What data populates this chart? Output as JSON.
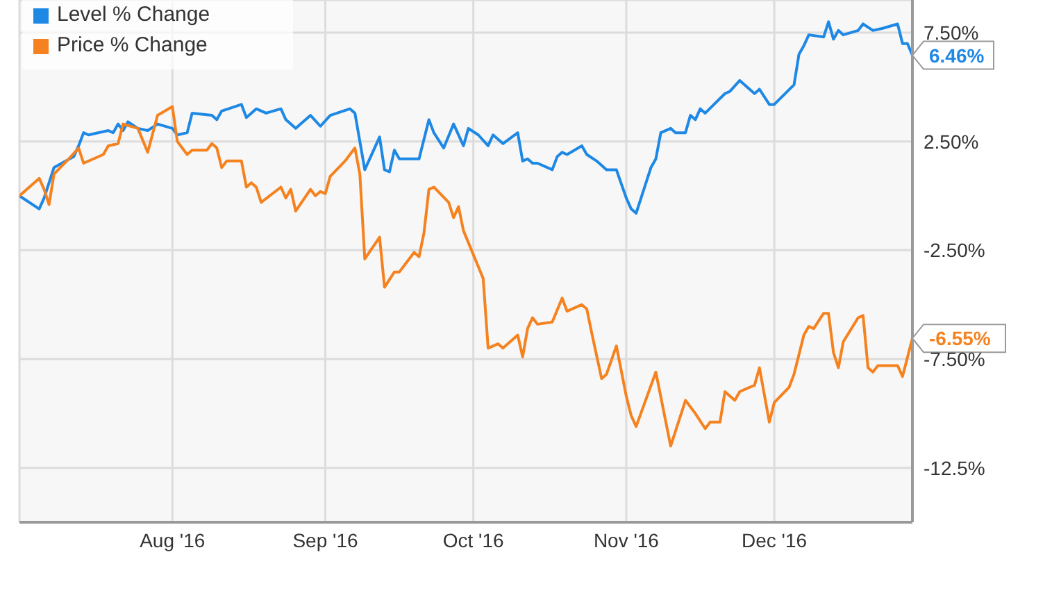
{
  "chart_data": {
    "type": "line",
    "series": [
      {
        "name": "Level % Change",
        "color": "#1e88e5",
        "x": [
          "2016-07-01",
          "2016-07-05",
          "2016-07-06",
          "2016-07-08",
          "2016-07-12",
          "2016-07-13",
          "2016-07-14",
          "2016-07-15",
          "2016-07-19",
          "2016-07-20",
          "2016-07-21",
          "2016-07-22",
          "2016-07-23",
          "2016-07-25",
          "2016-07-27",
          "2016-07-29",
          "2016-08-01",
          "2016-08-02",
          "2016-08-04",
          "2016-08-05",
          "2016-08-09",
          "2016-08-10",
          "2016-08-11",
          "2016-08-15",
          "2016-08-16",
          "2016-08-18",
          "2016-08-20",
          "2016-08-23",
          "2016-08-24",
          "2016-08-26",
          "2016-08-29",
          "2016-08-31",
          "2016-09-02",
          "2016-09-06",
          "2016-09-07",
          "2016-09-09",
          "2016-09-12",
          "2016-09-13",
          "2016-09-14",
          "2016-09-15",
          "2016-09-16",
          "2016-09-20",
          "2016-09-22",
          "2016-09-23",
          "2016-09-25",
          "2016-09-27",
          "2016-09-29",
          "2016-09-30",
          "2016-10-02",
          "2016-10-04",
          "2016-10-05",
          "2016-10-07",
          "2016-10-10",
          "2016-10-11",
          "2016-10-12",
          "2016-10-13",
          "2016-10-14",
          "2016-10-17",
          "2016-10-18",
          "2016-10-19",
          "2016-10-20",
          "2016-10-23",
          "2016-10-24",
          "2016-10-26",
          "2016-10-28",
          "2016-10-30",
          "2016-11-01",
          "2016-11-02",
          "2016-11-03",
          "2016-11-06",
          "2016-11-07",
          "2016-11-08",
          "2016-11-10",
          "2016-11-11",
          "2016-11-13",
          "2016-11-14",
          "2016-11-15",
          "2016-11-16",
          "2016-11-17",
          "2016-11-21",
          "2016-11-22",
          "2016-11-24",
          "2016-11-27",
          "2016-11-28",
          "2016-11-30",
          "2016-12-01",
          "2016-12-05",
          "2016-12-06",
          "2016-12-07",
          "2016-12-08",
          "2016-12-11",
          "2016-12-12",
          "2016-12-13",
          "2016-12-14",
          "2016-12-15",
          "2016-12-18",
          "2016-12-19",
          "2016-12-21",
          "2016-12-23",
          "2016-12-26",
          "2016-12-27",
          "2016-12-28",
          "2016-12-29"
        ],
        "values": [
          0,
          -0.6,
          -0.1,
          1.3,
          1.8,
          2.3,
          2.9,
          2.8,
          3.0,
          2.9,
          3.3,
          3.0,
          3.4,
          3.1,
          3.0,
          3.3,
          3.1,
          2.8,
          2.9,
          3.8,
          3.7,
          3.5,
          3.9,
          4.2,
          3.6,
          4.0,
          3.8,
          4.0,
          3.5,
          3.1,
          3.7,
          3.2,
          3.7,
          4.0,
          3.8,
          1.2,
          2.7,
          1.2,
          1.1,
          2.1,
          1.7,
          1.7,
          3.5,
          2.9,
          2.2,
          3.3,
          2.3,
          3.1,
          2.8,
          2.3,
          2.8,
          2.4,
          2.9,
          1.6,
          1.7,
          1.5,
          1.5,
          1.2,
          1.8,
          2.0,
          1.9,
          2.3,
          1.9,
          1.6,
          1.2,
          1.2,
          -0.1,
          -0.6,
          -0.8,
          1.3,
          1.7,
          2.9,
          3.1,
          2.9,
          2.9,
          3.7,
          3.5,
          4.0,
          3.8,
          4.7,
          4.8,
          5.3,
          4.7,
          4.9,
          4.2,
          4.2,
          5.1,
          6.5,
          6.9,
          7.4,
          7.3,
          8.0,
          7.2,
          7.6,
          7.4,
          7.6,
          7.9,
          7.6,
          7.7,
          7.9,
          7.0,
          7.0,
          6.46
        ]
      },
      {
        "name": "Price % Change",
        "color": "#f5821f",
        "x": [
          "2016-07-01",
          "2016-07-05",
          "2016-07-06",
          "2016-07-07",
          "2016-07-08",
          "2016-07-11",
          "2016-07-13",
          "2016-07-14",
          "2016-07-18",
          "2016-07-19",
          "2016-07-21",
          "2016-07-22",
          "2016-07-25",
          "2016-07-27",
          "2016-07-29",
          "2016-08-01",
          "2016-08-02",
          "2016-08-04",
          "2016-08-05",
          "2016-08-08",
          "2016-08-09",
          "2016-08-10",
          "2016-08-11",
          "2016-08-12",
          "2016-08-15",
          "2016-08-16",
          "2016-08-17",
          "2016-08-18",
          "2016-08-19",
          "2016-08-23",
          "2016-08-24",
          "2016-08-25",
          "2016-08-26",
          "2016-08-29",
          "2016-08-30",
          "2016-08-31",
          "2016-09-01",
          "2016-09-02",
          "2016-09-05",
          "2016-09-07",
          "2016-09-08",
          "2016-09-09",
          "2016-09-12",
          "2016-09-13",
          "2016-09-15",
          "2016-09-16",
          "2016-09-19",
          "2016-09-20",
          "2016-09-21",
          "2016-09-22",
          "2016-09-23",
          "2016-09-26",
          "2016-09-27",
          "2016-09-28",
          "2016-09-29",
          "2016-10-03",
          "2016-10-04",
          "2016-10-06",
          "2016-10-07",
          "2016-10-10",
          "2016-10-11",
          "2016-10-12",
          "2016-10-13",
          "2016-10-14",
          "2016-10-17",
          "2016-10-19",
          "2016-10-20",
          "2016-10-23",
          "2016-10-24",
          "2016-10-25",
          "2016-10-27",
          "2016-10-28",
          "2016-10-30",
          "2016-11-01",
          "2016-11-02",
          "2016-11-03",
          "2016-11-07",
          "2016-11-10",
          "2016-11-13",
          "2016-11-15",
          "2016-11-17",
          "2016-11-18",
          "2016-11-20",
          "2016-11-21",
          "2016-11-23",
          "2016-11-24",
          "2016-11-27",
          "2016-11-28",
          "2016-11-30",
          "2016-12-01",
          "2016-12-04",
          "2016-12-05",
          "2016-12-07",
          "2016-12-08",
          "2016-12-09",
          "2016-12-11",
          "2016-12-12",
          "2016-12-13",
          "2016-12-14",
          "2016-12-15",
          "2016-12-18",
          "2016-12-19",
          "2016-12-20",
          "2016-12-21",
          "2016-12-22",
          "2016-12-26",
          "2016-12-27",
          "2016-12-29"
        ],
        "values": [
          0,
          0.8,
          0.3,
          -0.4,
          1.0,
          1.7,
          2.2,
          1.5,
          1.9,
          2.3,
          2.4,
          3.3,
          3.1,
          2.0,
          3.7,
          4.1,
          2.5,
          1.9,
          2.1,
          2.1,
          2.4,
          2.2,
          1.3,
          1.6,
          1.6,
          0.4,
          0.6,
          0.4,
          -0.3,
          0.4,
          -0.1,
          0.3,
          -0.7,
          0.3,
          0,
          0.2,
          0.1,
          0.9,
          1.6,
          2.2,
          1.0,
          -2.9,
          -1.9,
          -4.2,
          -3.5,
          -3.5,
          -2.6,
          -2.8,
          -1.7,
          0.3,
          0.4,
          -0.3,
          -1.0,
          -0.5,
          -1.6,
          -3.8,
          -7.0,
          -6.8,
          -7.0,
          -6.4,
          -7.4,
          -6.1,
          -5.6,
          -5.9,
          -5.8,
          -4.7,
          -5.3,
          -5.0,
          -5.2,
          -6.3,
          -8.4,
          -8.2,
          -6.9,
          -9.2,
          -10.1,
          -10.6,
          -8.1,
          -11.5,
          -9.4,
          -10.0,
          -10.7,
          -10.4,
          -10.4,
          -9.0,
          -9.4,
          -9.0,
          -8.7,
          -7.9,
          -10.4,
          -9.5,
          -8.8,
          -8.2,
          -6.4,
          -6.0,
          -6.1,
          -5.4,
          -5.4,
          -7.2,
          -7.9,
          -6.7,
          -5.6,
          -5.5,
          -7.9,
          -8.1,
          -7.8,
          -7.8,
          -8.3,
          -6.55
        ]
      }
    ],
    "xlim": [
      "2016-07-01",
      "2016-12-29"
    ],
    "xticks": [
      {
        "value": "2016-08-01",
        "label": "Aug '16"
      },
      {
        "value": "2016-09-01",
        "label": "Sep '16"
      },
      {
        "value": "2016-10-01",
        "label": "Oct '16"
      },
      {
        "value": "2016-11-01",
        "label": "Nov '16"
      },
      {
        "value": "2016-12-01",
        "label": "Dec '16"
      }
    ],
    "ylim": [
      -15,
      9
    ],
    "yticks": [
      {
        "value": 7.5,
        "label": "7.50%"
      },
      {
        "value": 2.5,
        "label": "2.50%"
      },
      {
        "value": -2.5,
        "label": "-2.50%"
      },
      {
        "value": -7.5,
        "label": "-7.50%"
      },
      {
        "value": -12.5,
        "label": "-12.5%"
      }
    ],
    "annotations": [
      {
        "text": "6.46%",
        "x": "2016-12-29",
        "y": 6.46
      },
      {
        "text": "-6.55%",
        "x": "2016-12-29",
        "y": -6.55
      }
    ],
    "grid": true,
    "legend": "top left",
    "marker": "none",
    "line_style": "solid"
  }
}
